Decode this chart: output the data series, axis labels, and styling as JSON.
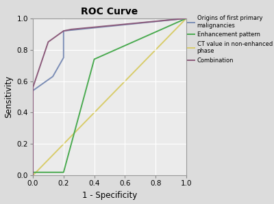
{
  "title": "ROC Curve",
  "xlabel": "1 - Specificity",
  "ylabel": "Sensitivity",
  "fig_bg_color": "#dcdcdc",
  "plot_bg_color": "#ebebeb",
  "curves": {
    "origins": {
      "label": "Origins of first primary\nmalignancies",
      "color": "#7b8db5",
      "linewidth": 1.4,
      "x": [
        0.0,
        0.0,
        0.13,
        0.2,
        0.2,
        1.0
      ],
      "y": [
        0.0,
        0.54,
        0.63,
        0.75,
        0.92,
        1.0
      ]
    },
    "enhancement": {
      "label": "Enhancement pattern",
      "color": "#4aaa50",
      "linewidth": 1.4,
      "x": [
        0.0,
        0.0,
        0.2,
        0.4,
        1.0
      ],
      "y": [
        0.0,
        0.02,
        0.02,
        0.74,
        1.0
      ]
    },
    "ct_value": {
      "label": "CT value in non-enhanced\nphase",
      "color": "#d8cc6a",
      "linewidth": 1.4,
      "x": [
        0.0,
        1.0
      ],
      "y": [
        0.0,
        1.0
      ]
    },
    "combination": {
      "label": "Combination",
      "color": "#8b5a7a",
      "linewidth": 1.4,
      "x": [
        0.0,
        0.0,
        0.1,
        0.2,
        0.25,
        1.0
      ],
      "y": [
        0.0,
        0.56,
        0.85,
        0.92,
        0.93,
        1.0
      ]
    }
  },
  "xlim": [
    0.0,
    1.0
  ],
  "ylim": [
    0.0,
    1.0
  ],
  "xticks": [
    0.0,
    0.2,
    0.4,
    0.6,
    0.8,
    1.0
  ],
  "yticks": [
    0.0,
    0.2,
    0.4,
    0.6,
    0.8,
    1.0
  ],
  "legend_fontsize": 6.0,
  "axis_label_fontsize": 8.5,
  "tick_fontsize": 7.5,
  "title_fontsize": 10
}
